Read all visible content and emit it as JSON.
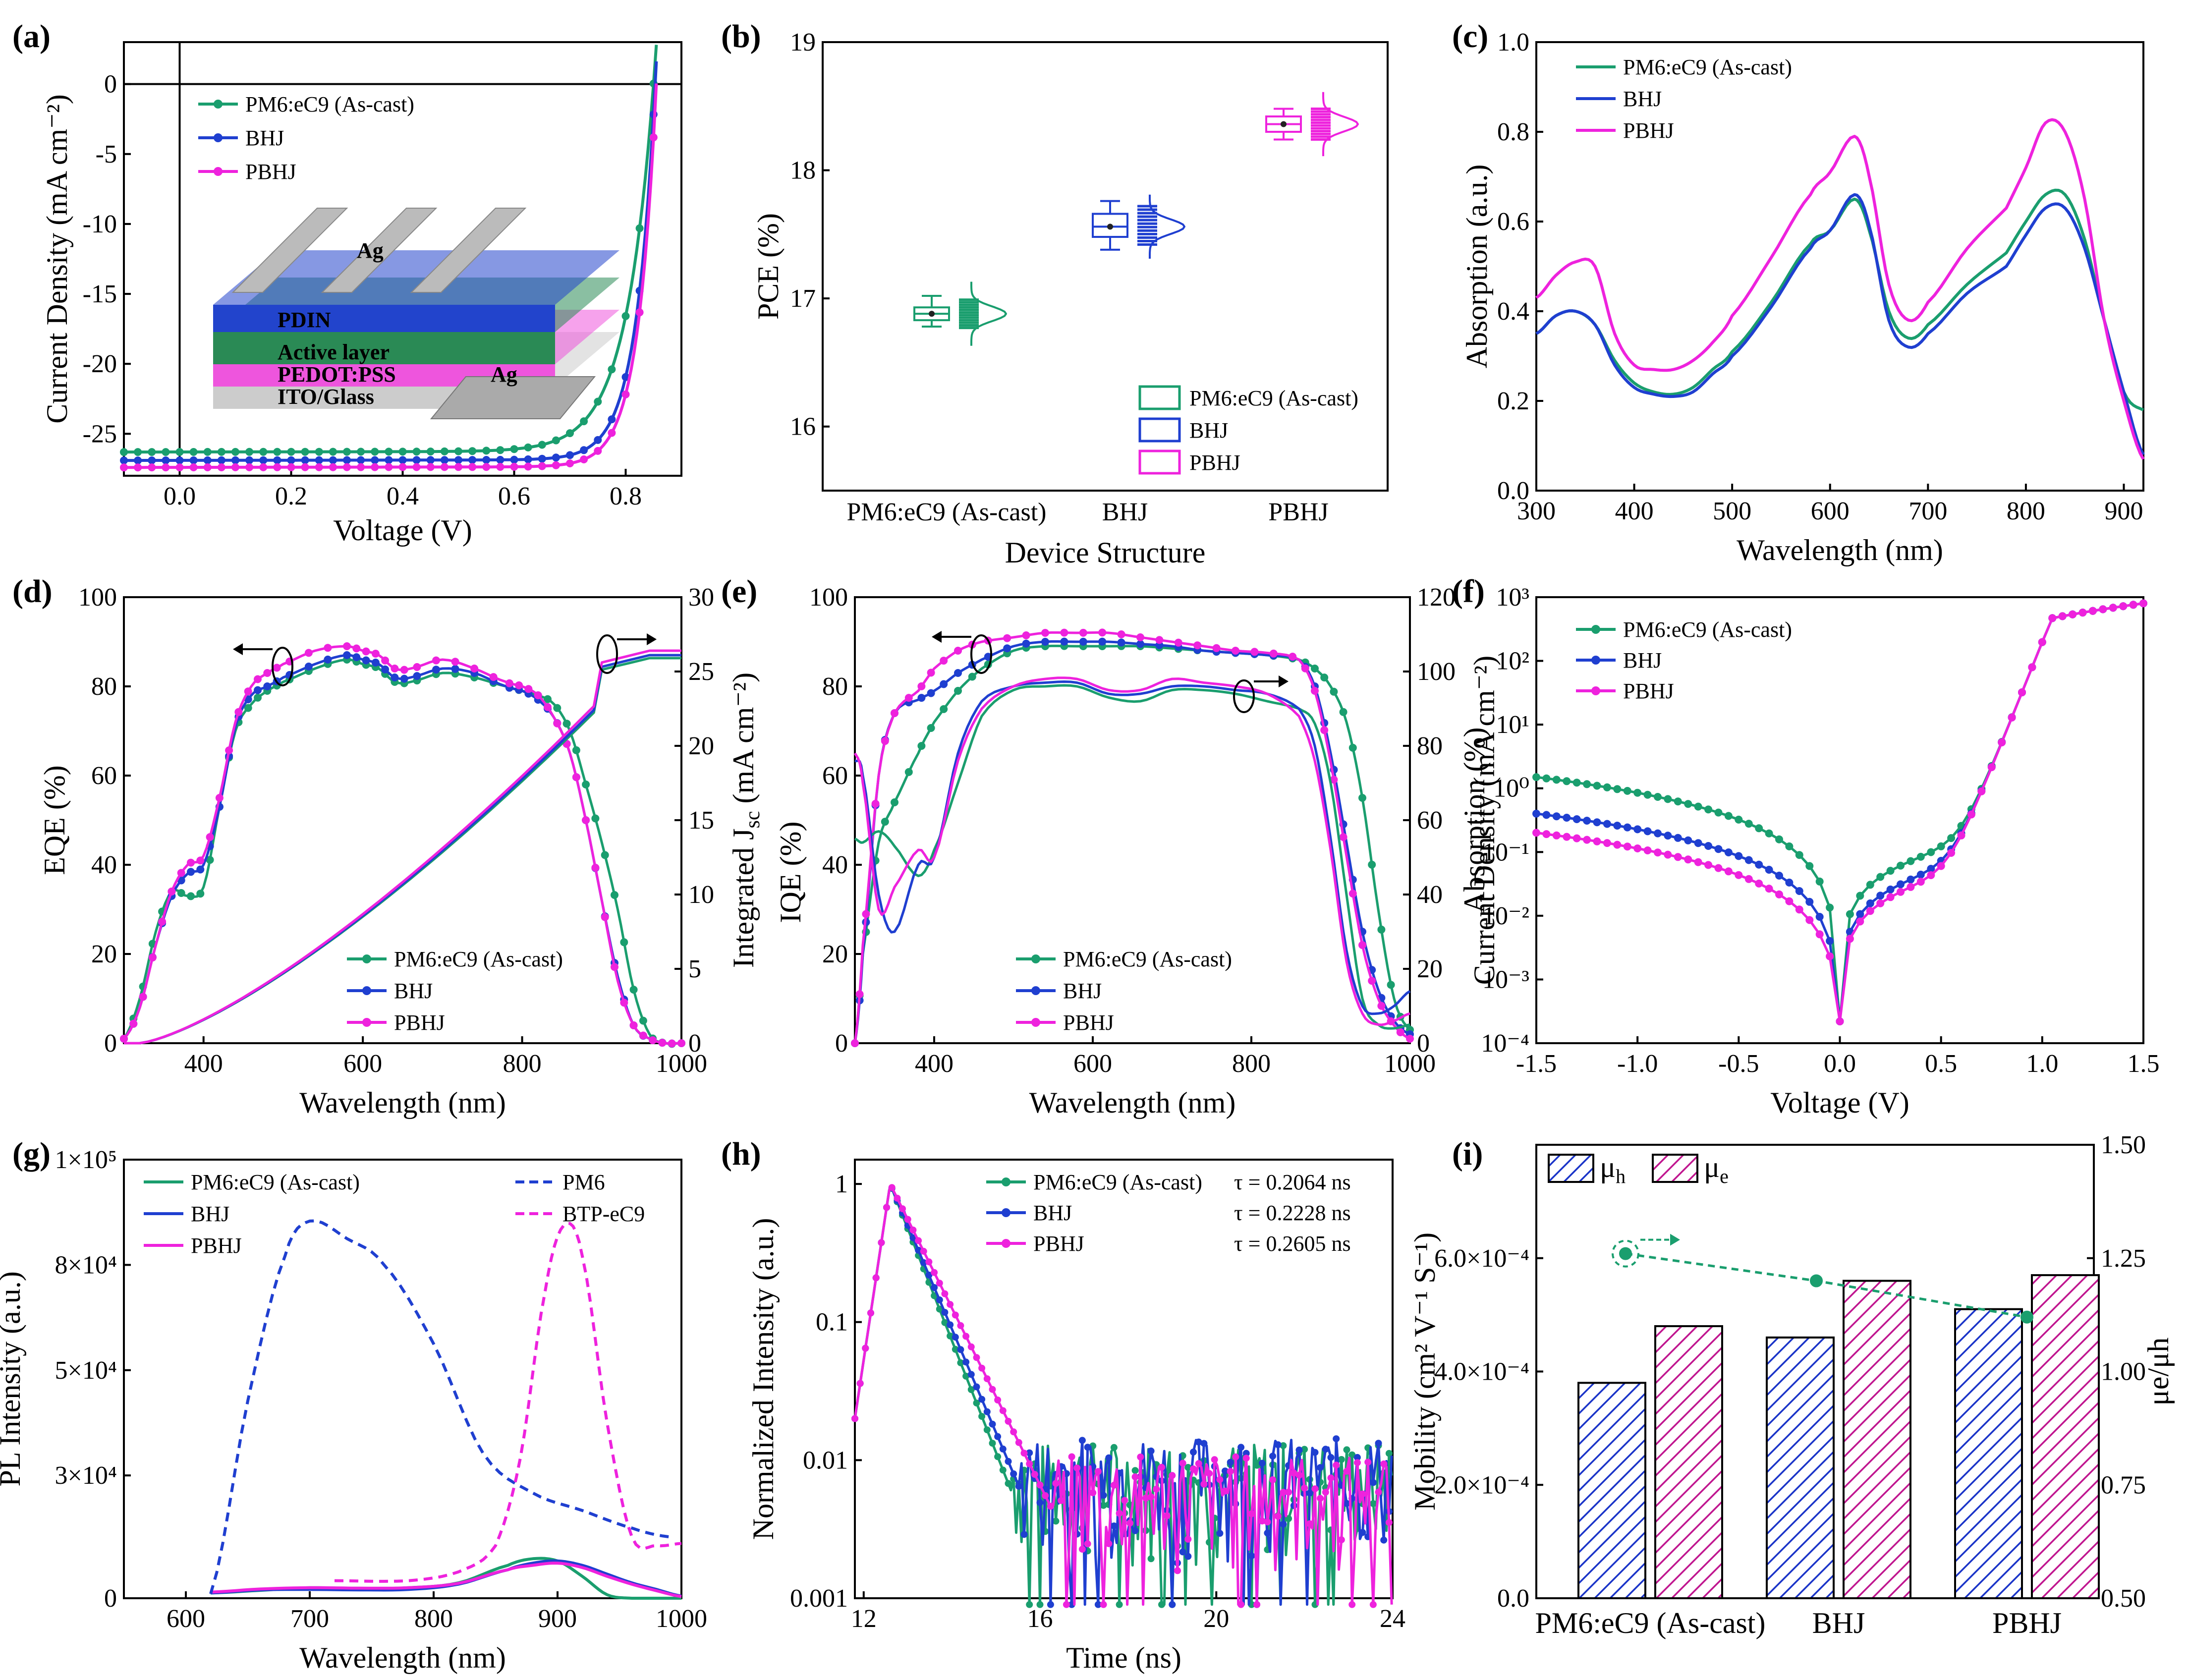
{
  "colors": {
    "green": "#1a9e6e",
    "blue": "#1f3fd0",
    "magenta": "#ee22dd",
    "navy": "#1a34c8"
  },
  "chart_data": [
    {
      "panel": "(a)",
      "type": "line",
      "xlabel": "Voltage (V)",
      "ylabel": "Current Density (mA cm⁻²)",
      "xlim": [
        -0.1,
        0.9
      ],
      "ylim": [
        -28,
        3
      ],
      "xticks": [
        "0.0",
        "0.2",
        "0.4",
        "0.6",
        "0.8"
      ],
      "yticks": [
        "0",
        "-5",
        "-10",
        "-15",
        "-20",
        "-25"
      ],
      "series": [
        {
          "name": "PM6:eC9 (As-cast)",
          "color": "green",
          "jsc": -26.3,
          "voc": 0.85,
          "shape": 0.05
        },
        {
          "name": "BHJ",
          "color": "blue",
          "jsc": -26.9,
          "voc": 0.853,
          "shape": 0.035
        },
        {
          "name": "PBHJ",
          "color": "magenta",
          "jsc": -27.4,
          "voc": 0.855,
          "shape": 0.033
        }
      ],
      "inset": [
        "Ag",
        "PDIN",
        "Active layer",
        "PEDOT:PSS",
        "ITO/Glass",
        "Ag"
      ]
    },
    {
      "panel": "(b)",
      "type": "box",
      "xlabel": "Device Structure",
      "ylabel": "PCE (%)",
      "ylim": [
        15.5,
        19
      ],
      "yticks": [
        "16",
        "17",
        "18",
        "19"
      ],
      "categories": [
        "PM6:eC9 (As-cast)",
        "BHJ",
        "PBHJ"
      ],
      "series": [
        {
          "name": "PM6:eC9 (As-cast)",
          "color": "green",
          "mean": 16.88,
          "q1": 16.83,
          "q3": 16.93,
          "min": 16.78,
          "max": 17.02
        },
        {
          "name": "BHJ",
          "color": "blue",
          "mean": 17.56,
          "q1": 17.48,
          "q3": 17.66,
          "min": 17.38,
          "max": 17.76
        },
        {
          "name": "PBHJ",
          "color": "magenta",
          "mean": 18.36,
          "q1": 18.3,
          "q3": 18.42,
          "min": 18.24,
          "max": 18.48
        }
      ]
    },
    {
      "panel": "(c)",
      "type": "line",
      "xlabel": "Wavelength (nm)",
      "ylabel": "Absorption (a.u.)",
      "xlim": [
        300,
        920
      ],
      "ylim": [
        0,
        1.0
      ],
      "xticks": [
        "300",
        "400",
        "500",
        "600",
        "700",
        "800",
        "900"
      ],
      "yticks": [
        "0.0",
        "0.2",
        "0.4",
        "0.6",
        "0.8",
        "1.0"
      ],
      "x": [
        300,
        320,
        340,
        360,
        380,
        400,
        420,
        440,
        460,
        480,
        500,
        540,
        580,
        600,
        625,
        640,
        660,
        680,
        700,
        740,
        780,
        800,
        820,
        840,
        860,
        880,
        900,
        920
      ],
      "series": [
        {
          "name": "PM6:eC9 (As-cast)",
          "color": "green",
          "values": [
            0.35,
            0.39,
            0.4,
            0.37,
            0.29,
            0.24,
            0.22,
            0.215,
            0.23,
            0.27,
            0.31,
            0.42,
            0.55,
            0.58,
            0.65,
            0.58,
            0.4,
            0.34,
            0.37,
            0.46,
            0.53,
            0.6,
            0.66,
            0.66,
            0.56,
            0.38,
            0.22,
            0.18
          ]
        },
        {
          "name": "BHJ",
          "color": "blue",
          "values": [
            0.35,
            0.39,
            0.4,
            0.37,
            0.28,
            0.23,
            0.215,
            0.21,
            0.22,
            0.26,
            0.3,
            0.41,
            0.54,
            0.58,
            0.66,
            0.59,
            0.38,
            0.32,
            0.35,
            0.44,
            0.5,
            0.57,
            0.63,
            0.63,
            0.54,
            0.38,
            0.22,
            0.08
          ]
        },
        {
          "name": "PBHJ",
          "color": "magenta",
          "values": [
            0.43,
            0.48,
            0.51,
            0.5,
            0.35,
            0.28,
            0.27,
            0.27,
            0.29,
            0.33,
            0.39,
            0.52,
            0.66,
            0.71,
            0.79,
            0.7,
            0.46,
            0.38,
            0.42,
            0.54,
            0.63,
            0.72,
            0.82,
            0.8,
            0.65,
            0.38,
            0.2,
            0.07
          ]
        }
      ]
    },
    {
      "panel": "(d)",
      "type": "line",
      "xlabel": "Wavelength (nm)",
      "ylabel": "EQE (%)",
      "y2label": "Integrated J_sc (mA cm⁻²)",
      "xlim": [
        300,
        1000
      ],
      "ylim": [
        0,
        100
      ],
      "y2lim": [
        0,
        30
      ],
      "xticks": [
        "400",
        "600",
        "800",
        "1000"
      ],
      "yticks": [
        "0",
        "20",
        "40",
        "60",
        "80",
        "100"
      ],
      "y2ticks": [
        "0",
        "5",
        "10",
        "15",
        "20",
        "25",
        "30"
      ],
      "x": [
        300,
        320,
        340,
        360,
        380,
        400,
        420,
        440,
        460,
        480,
        500,
        540,
        580,
        600,
        620,
        640,
        660,
        700,
        740,
        780,
        800,
        820,
        840,
        860,
        880,
        900,
        920,
        940,
        960,
        980,
        1000
      ],
      "series": [
        {
          "name": "PM6:eC9 (As-cast)",
          "color": "green",
          "values": [
            1,
            10,
            25,
            34,
            33,
            35,
            53,
            70,
            76,
            79,
            81,
            84,
            86,
            85,
            84,
            81,
            81,
            83,
            82,
            80,
            79,
            78,
            76,
            70,
            58,
            45,
            30,
            12,
            2,
            0,
            0
          ]
        },
        {
          "name": "BHJ",
          "color": "blue",
          "values": [
            1,
            8,
            22,
            33,
            38,
            40,
            53,
            71,
            78,
            80,
            82,
            85,
            87,
            86,
            85,
            82,
            82,
            84,
            83,
            80,
            79,
            77,
            73,
            65,
            50,
            32,
            15,
            4,
            1,
            0,
            0
          ]
        },
        {
          "name": "PBHJ",
          "color": "magenta",
          "values": [
            1,
            8,
            22,
            34,
            40,
            42,
            55,
            72,
            80,
            83,
            85,
            88,
            89,
            88,
            87,
            84,
            84,
            86,
            84,
            81,
            80,
            78,
            73,
            65,
            50,
            32,
            14,
            4,
            1,
            0,
            0
          ]
        }
      ],
      "integrated": [
        {
          "color": "green",
          "final": 25.9
        },
        {
          "color": "blue",
          "final": 26.1
        },
        {
          "color": "magenta",
          "final": 26.4
        }
      ]
    },
    {
      "panel": "(e)",
      "type": "line",
      "xlabel": "Wavelength (nm)",
      "ylabel": "IQE (%)",
      "y2label": "Absorption (%)",
      "xlim": [
        300,
        1000
      ],
      "ylim": [
        0,
        100
      ],
      "y2lim": [
        0,
        120
      ],
      "xticks": [
        "400",
        "600",
        "800",
        "1000"
      ],
      "yticks": [
        "0",
        "20",
        "40",
        "60",
        "80",
        "100"
      ],
      "y2ticks": [
        "0",
        "20",
        "40",
        "60",
        "80",
        "100",
        "120"
      ],
      "x": [
        300,
        310,
        330,
        350,
        380,
        400,
        430,
        460,
        500,
        540,
        580,
        620,
        660,
        700,
        740,
        780,
        820,
        860,
        880,
        900,
        920,
        940,
        960,
        980,
        1000
      ],
      "series": [
        {
          "name": "PM6:eC9 (As-cast)",
          "color": "green",
          "values": [
            0,
            20,
            45,
            54,
            65,
            72,
            79,
            84,
            88,
            89,
            89,
            89,
            89,
            88.5,
            88,
            87.5,
            87,
            86,
            84,
            80,
            72,
            55,
            30,
            10,
            3
          ]
        },
        {
          "name": "BHJ",
          "color": "blue",
          "values": [
            0,
            20,
            60,
            74,
            77,
            79,
            83,
            86,
            89,
            90,
            90,
            90,
            89.5,
            89,
            88,
            87.5,
            87,
            86,
            80,
            65,
            45,
            25,
            12,
            5,
            2
          ]
        },
        {
          "name": "PBHJ",
          "color": "magenta",
          "values": [
            0,
            22,
            60,
            74,
            79,
            84,
            88,
            90,
            91,
            92,
            92,
            92,
            91,
            90,
            89,
            88,
            87.5,
            86,
            79,
            63,
            42,
            22,
            10,
            4,
            1
          ]
        }
      ],
      "absorption": [
        {
          "color": "green",
          "values": [
            55,
            54,
            57,
            53,
            45,
            52,
            70,
            88,
            95,
            96,
            96,
            93,
            92,
            95,
            95,
            94,
            92,
            90,
            86,
            70,
            40,
            12,
            5,
            4,
            5
          ]
        },
        {
          "color": "blue",
          "values": [
            76,
            72,
            40,
            30,
            48,
            50,
            78,
            92,
            96,
            97,
            97,
            94,
            94,
            96,
            96,
            95,
            94,
            90,
            80,
            55,
            25,
            10,
            8,
            10,
            14
          ]
        },
        {
          "color": "magenta",
          "values": [
            78,
            70,
            36,
            42,
            52,
            50,
            76,
            90,
            96,
            98,
            98,
            95,
            95,
            98,
            97,
            96,
            94,
            88,
            76,
            52,
            22,
            8,
            5,
            6,
            8
          ]
        }
      ]
    },
    {
      "panel": "(f)",
      "type": "line",
      "yscale": "log",
      "xlabel": "Voltage (V)",
      "ylabel": "Current Density (mA cm⁻²)",
      "xlim": [
        -1.5,
        1.5
      ],
      "ylim": [
        0.0001,
        1000
      ],
      "xticks": [
        "-1.5",
        "-1.0",
        "-0.5",
        "0.0",
        "0.5",
        "1.0",
        "1.5"
      ],
      "yticks": [
        "10⁻⁴",
        "10⁻³",
        "10⁻²",
        "10⁻¹",
        "10⁰",
        "10¹",
        "10²",
        "10³"
      ],
      "series": [
        {
          "name": "PM6:eC9 (As-cast)",
          "color": "green",
          "rev": 1.5,
          "fwd": 0.12
        },
        {
          "name": "BHJ",
          "color": "blue",
          "rev": 0.4,
          "fwd": 0.06
        },
        {
          "name": "PBHJ",
          "color": "magenta",
          "rev": 0.2,
          "fwd": 0.045
        }
      ]
    },
    {
      "panel": "(g)",
      "type": "line",
      "xlabel": "Wavelength (nm)",
      "ylabel": "PL Intensity (a.u.)",
      "xlim": [
        550,
        1000
      ],
      "ylim": [
        0,
        100000
      ],
      "xticks": [
        "600",
        "700",
        "800",
        "900",
        "1000"
      ],
      "yticks": [
        "0",
        "3×10⁴",
        "5×10⁴",
        "8×10⁴",
        "1×10⁵"
      ],
      "x": [
        620,
        660,
        700,
        740,
        780,
        820,
        860,
        880,
        900,
        920,
        940,
        960,
        980,
        1000
      ],
      "series": [
        {
          "name": "PM6:eC9 (As-cast)",
          "color": "green",
          "values": [
            1200,
            1800,
            2400,
            2200,
            2400,
            3500,
            7500,
            9000,
            8500,
            5000,
            800,
            0,
            0,
            0
          ]
        },
        {
          "name": "BHJ",
          "color": "blue",
          "values": [
            1200,
            1900,
            2000,
            1900,
            2000,
            3200,
            6500,
            8000,
            8500,
            7500,
            5500,
            3500,
            2000,
            500
          ]
        },
        {
          "name": "PBHJ",
          "color": "magenta",
          "values": [
            1400,
            2100,
            2400,
            2300,
            2400,
            3400,
            6500,
            7500,
            8000,
            7000,
            5000,
            3200,
            1700,
            400
          ]
        },
        {
          "name": "PM6",
          "color": "blue",
          "dashed": true,
          "x": [
            620,
            650,
            680,
            700,
            730,
            760,
            800,
            840,
            880,
            920,
            960,
            990
          ],
          "values": [
            1000,
            45000,
            78000,
            86000,
            82000,
            76000,
            58000,
            33000,
            24000,
            20000,
            16000,
            14000
          ]
        },
        {
          "name": "BTP-eC9",
          "color": "magenta",
          "dashed": true,
          "x": [
            720,
            780,
            820,
            850,
            870,
            890,
            905,
            920,
            940,
            960,
            980,
            1000
          ],
          "values": [
            4000,
            4000,
            6000,
            12000,
            32000,
            70000,
            85000,
            78000,
            40000,
            14000,
            12000,
            12500
          ]
        }
      ]
    },
    {
      "panel": "(h)",
      "type": "line",
      "yscale": "log",
      "xlabel": "Time (ns)",
      "ylabel": "Normalized Intensity (a.u.)",
      "xlim": [
        11.8,
        24
      ],
      "ylim": [
        0.001,
        1.5
      ],
      "xticks": [
        "12",
        "16",
        "20",
        "24"
      ],
      "yticks": [
        "0.001",
        "0.01",
        "0.1",
        "1"
      ],
      "series": [
        {
          "name": "PM6:eC9 (As-cast)",
          "color": "green",
          "tau": "τ = 0.2064 ns",
          "tau_ns": 0.2064,
          "floor": 0.0055
        },
        {
          "name": "BHJ",
          "color": "blue",
          "tau": "τ = 0.2228 ns",
          "tau_ns": 0.2228,
          "floor": 0.006
        },
        {
          "name": "PBHJ",
          "color": "magenta",
          "tau": "τ = 0.2605 ns",
          "tau_ns": 0.2605,
          "floor": 0.0045
        }
      ]
    },
    {
      "panel": "(i)",
      "type": "bar",
      "ylabel": "Mobility (cm² V⁻¹ S⁻¹)",
      "y2label": "μe/μh",
      "ylim": [
        0,
        0.0008
      ],
      "y2lim": [
        0.5,
        1.5
      ],
      "yticks": [
        "0.0",
        "2.0×10⁻⁴",
        "4.0×10⁻⁴",
        "6.0×10⁻⁴"
      ],
      "y2ticks": [
        "0.50",
        "0.75",
        "1.00",
        "1.25",
        "1.50"
      ],
      "categories": [
        "PM6:eC9 (As-cast)",
        "BHJ",
        "PBHJ"
      ],
      "series": [
        {
          "name": "μh",
          "color": "navy",
          "values": [
            0.00038,
            0.00046,
            0.00051
          ]
        },
        {
          "name": "μe",
          "color": "magenta",
          "values": [
            0.00048,
            0.00056,
            0.00057
          ]
        },
        {
          "name": "μe/μh",
          "color": "green",
          "values": [
            1.26,
            1.2,
            1.12
          ]
        }
      ]
    }
  ]
}
